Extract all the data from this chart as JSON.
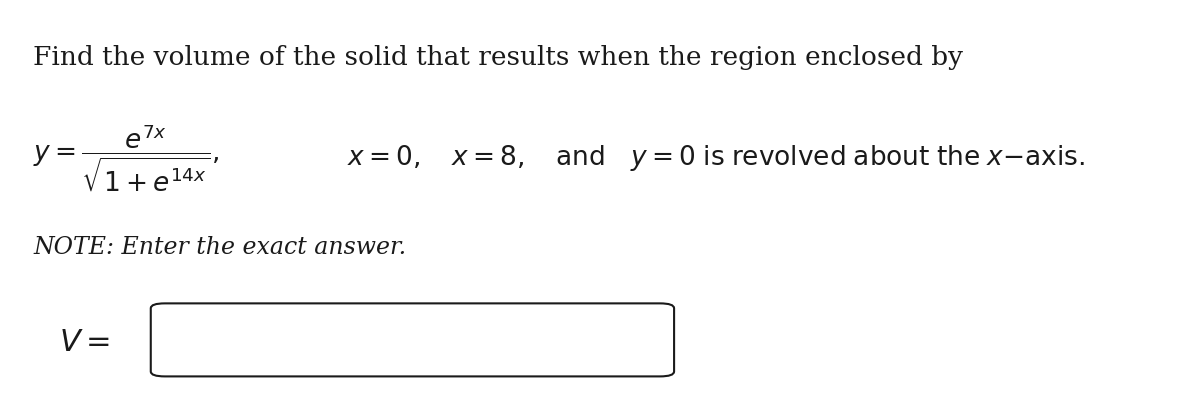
{
  "background_color": "#ffffff",
  "border_color": "#1a1a1a",
  "text_color": "#1a1a1a",
  "title_text": "Find the volume of the solid that results when the region enclosed by",
  "note_text": "NOTE: Enter the exact answer.",
  "figsize": [
    12.0,
    4.14
  ],
  "dpi": 100,
  "title_fontsize": 19,
  "eq_fontsize": 19,
  "note_fontsize": 17,
  "v_fontsize": 22
}
